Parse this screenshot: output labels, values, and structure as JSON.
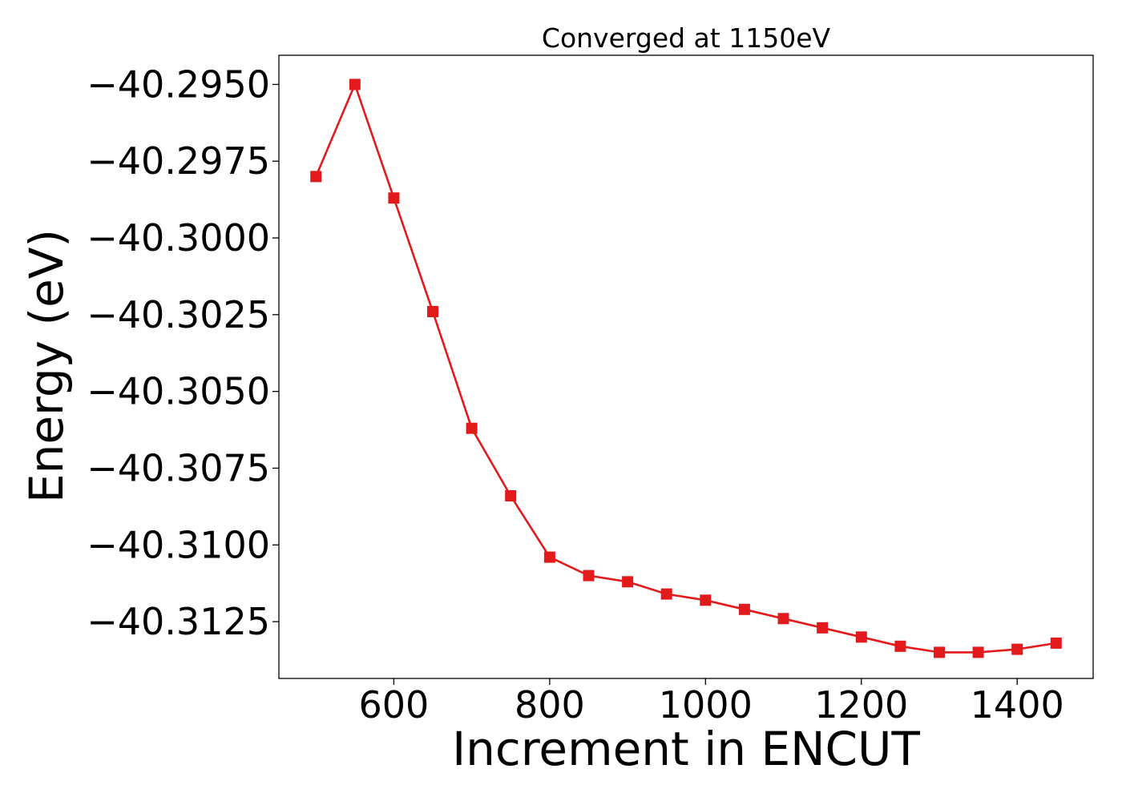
{
  "chart_data": {
    "type": "line",
    "title": "Converged at 1150eV",
    "xlabel": "Increment in ENCUT",
    "ylabel": "Energy (eV)",
    "xlim": [
      452.5,
      1497.5
    ],
    "ylim": [
      -40.31435,
      -40.29405
    ],
    "x_ticks": [
      600,
      800,
      1000,
      1200,
      1400
    ],
    "x_tick_labels": [
      "600",
      "800",
      "1000",
      "1200",
      "1400"
    ],
    "y_ticks": [
      -40.295,
      -40.2975,
      -40.3,
      -40.3025,
      -40.305,
      -40.3075,
      -40.31,
      -40.3125
    ],
    "y_tick_labels": [
      "−40.2950",
      "−40.2975",
      "−40.3000",
      "−40.3025",
      "−40.3050",
      "−40.3075",
      "−40.3100",
      "−40.3125"
    ],
    "grid": false,
    "legend": false,
    "series": [
      {
        "marker": "square",
        "color": "#e31a1c",
        "x": [
          500,
          550,
          600,
          650,
          700,
          750,
          800,
          850,
          900,
          950,
          1000,
          1050,
          1100,
          1150,
          1200,
          1250,
          1300,
          1350,
          1400,
          1450
        ],
        "y": [
          -40.298,
          -40.295,
          -40.2987,
          -40.3024,
          -40.3062,
          -40.3084,
          -40.3104,
          -40.311,
          -40.3112,
          -40.3116,
          -40.3118,
          -40.3121,
          -40.3124,
          -40.3127,
          -40.313,
          -40.3133,
          -40.3135,
          -40.3135,
          -40.3134,
          -40.3132
        ]
      }
    ]
  }
}
